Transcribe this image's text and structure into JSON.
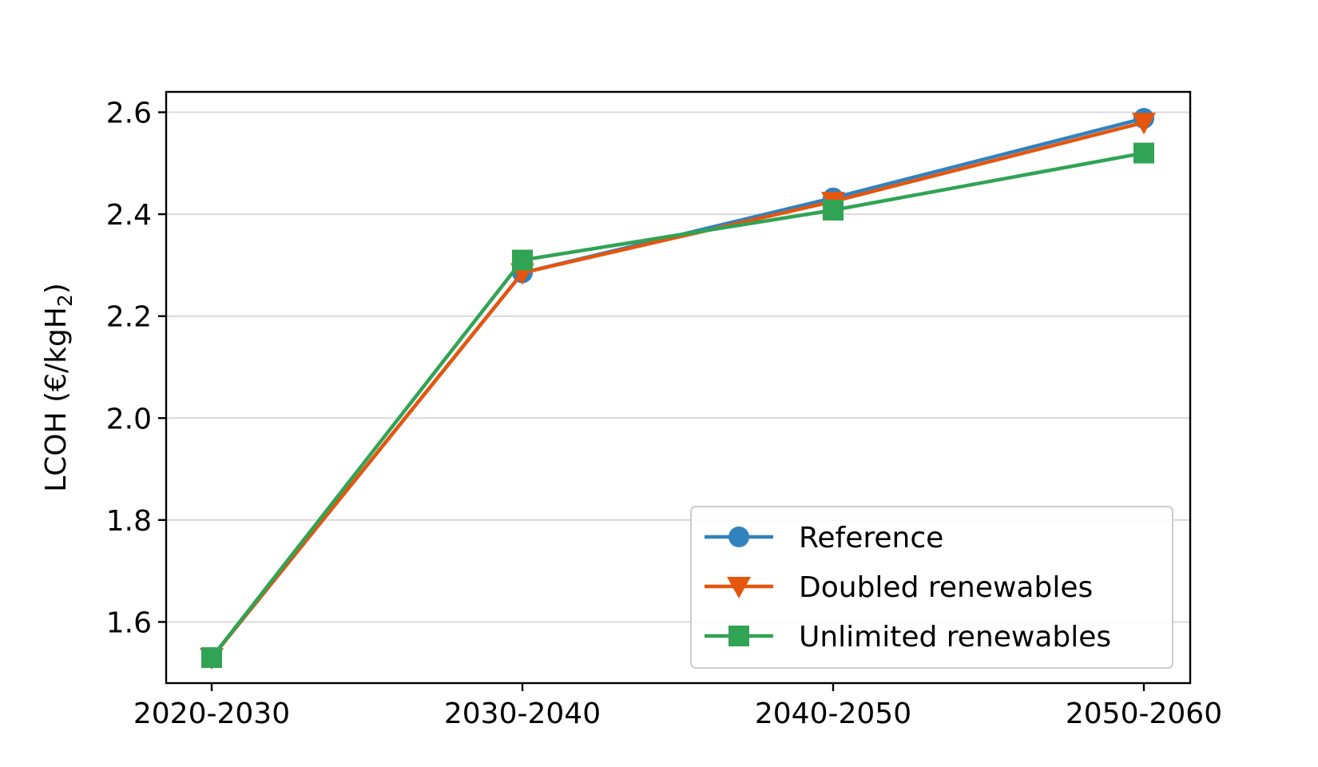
{
  "chart_data": {
    "type": "line",
    "categories": [
      "2020-2030",
      "2030-2040",
      "2040-2050",
      "2050-2060"
    ],
    "ylabel": "LCOH (€/kgH",
    "ylabel_sub": "2",
    "ylabel_close": ")",
    "ylim": [
      1.48,
      2.64
    ],
    "yticks": [
      "1.6",
      "1.8",
      "2.0",
      "2.2",
      "2.4",
      "2.6"
    ],
    "grid": "horizontal",
    "legend_position": "lower-right",
    "series": [
      {
        "name": "Reference",
        "values": [
          1.53,
          2.285,
          2.432,
          2.588
        ],
        "color": "#3182bd",
        "marker": "circle"
      },
      {
        "name": "Doubled renewables",
        "values": [
          1.53,
          2.285,
          2.425,
          2.58
        ],
        "color": "#e6550d",
        "marker": "triangle-down"
      },
      {
        "name": "Unlimited renewables",
        "values": [
          1.53,
          2.31,
          2.408,
          2.52
        ],
        "color": "#31a354",
        "marker": "square"
      }
    ]
  }
}
